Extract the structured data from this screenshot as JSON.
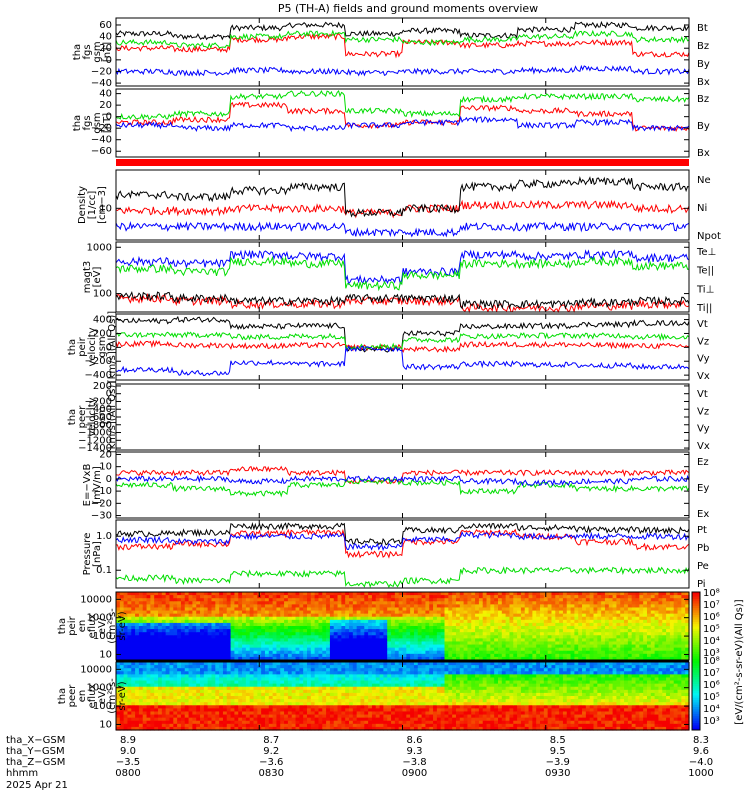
{
  "title": "P5 (TH-A) fields and ground moments overview",
  "colors": {
    "black": "#000000",
    "red": "#ff0000",
    "green": "#00dd00",
    "blue": "#0000ff"
  },
  "chart_data": [
    {
      "id": "fgs_total",
      "type": "line",
      "ylabel": [
        "tha",
        "fgs",
        "gsm",
        "[nT]"
      ],
      "ylim": [
        -45,
        72
      ],
      "ticks": [
        {
          "v": 60,
          "l": "60"
        },
        {
          "v": 40,
          "l": "40"
        },
        {
          "v": 20,
          "l": "20"
        },
        {
          "v": 0,
          "l": "0"
        },
        {
          "v": -20,
          "l": "−20"
        },
        {
          "v": -40,
          "l": "−40"
        }
      ],
      "series": [
        {
          "name": "Bt",
          "color": "black",
          "base": [
            45,
            40,
            55,
            60,
            45,
            50,
            42,
            52,
            60,
            55
          ]
        },
        {
          "name": "Bz",
          "color": "red",
          "base": [
            20,
            18,
            35,
            40,
            10,
            30,
            25,
            28,
            30,
            10
          ]
        },
        {
          "name": "By",
          "color": "green",
          "base": [
            30,
            25,
            40,
            45,
            35,
            30,
            35,
            40,
            45,
            35
          ]
        },
        {
          "name": "Bx",
          "color": "blue",
          "base": [
            -20,
            -22,
            -18,
            -20,
            -22,
            -20,
            -20,
            -18,
            -15,
            -20
          ]
        }
      ]
    },
    {
      "id": "fgs_gsm",
      "type": "line",
      "ylabel": [
        "tha",
        "fgs",
        "gsm",
        "[nT]"
      ],
      "ylim": [
        -70,
        48
      ],
      "ticks": [
        {
          "v": 40,
          "l": "40"
        },
        {
          "v": 20,
          "l": "20"
        },
        {
          "v": 0,
          "l": "0"
        },
        {
          "v": -20,
          "l": "−20"
        },
        {
          "v": -40,
          "l": "−40"
        },
        {
          "v": -60,
          "l": "−60"
        }
      ],
      "series": [
        {
          "name": "Bz",
          "color": "red",
          "base": [
            -10,
            -5,
            20,
            10,
            -15,
            -10,
            15,
            10,
            5,
            -20
          ]
        },
        {
          "name": "By",
          "color": "green",
          "base": [
            0,
            5,
            35,
            40,
            10,
            5,
            30,
            35,
            35,
            30
          ]
        },
        {
          "name": "Bx",
          "color": "blue",
          "base": [
            -15,
            -20,
            -15,
            -20,
            -15,
            -10,
            -5,
            -15,
            -10,
            -20
          ]
        }
      ]
    },
    {
      "id": "density",
      "type": "line",
      "ylabel": [
        "Density",
        "[1/cc]",
        "[cm−3]"
      ],
      "ylim": [
        2,
        70
      ],
      "log": true,
      "ticks": [
        {
          "v": 10,
          "l": "10"
        }
      ],
      "series": [
        {
          "name": "Ne",
          "color": "red",
          "base": [
            9,
            9,
            10,
            10,
            8,
            10,
            12,
            12,
            12,
            10
          ]
        },
        {
          "name": "Ni",
          "color": "black",
          "base": [
            20,
            18,
            25,
            30,
            8,
            10,
            30,
            35,
            40,
            30
          ]
        },
        {
          "name": "Npot",
          "color": "blue",
          "base": [
            4,
            4,
            4,
            4,
            3,
            3,
            4,
            4,
            4,
            4
          ]
        }
      ]
    },
    {
      "id": "temperature",
      "type": "line",
      "ylabel": [
        "magt3",
        "[eV]"
      ],
      "ylim": [
        40,
        1300
      ],
      "log": true,
      "ticks": [
        {
          "v": 1000,
          "l": "1000"
        },
        {
          "v": 100,
          "l": "100"
        }
      ],
      "series": [
        {
          "name": "Te⊥",
          "color": "red",
          "base": [
            80,
            70,
            60,
            60,
            70,
            70,
            50,
            50,
            55,
            60
          ]
        },
        {
          "name": "Te||",
          "color": "black",
          "base": [
            90,
            80,
            70,
            70,
            80,
            80,
            60,
            60,
            65,
            70
          ]
        },
        {
          "name": "Ti⊥",
          "color": "blue",
          "base": [
            500,
            450,
            700,
            650,
            200,
            300,
            700,
            650,
            700,
            600
          ]
        },
        {
          "name": "Ti||",
          "color": "green",
          "base": [
            350,
            300,
            500,
            450,
            150,
            250,
            450,
            450,
            500,
            400
          ]
        }
      ]
    },
    {
      "id": "peir_velocity",
      "type": "line",
      "ylabel": [
        "tha",
        "peir",
        "velocity",
        "gsm",
        "[km/s](All Qs)]"
      ],
      "ylim": [
        -470,
        480
      ],
      "ticks": [
        {
          "v": 400,
          "l": "400"
        },
        {
          "v": 200,
          "l": "200"
        },
        {
          "v": 0,
          "l": "0"
        },
        {
          "v": -200,
          "l": "−200"
        },
        {
          "v": -400,
          "l": "−400"
        }
      ],
      "series": [
        {
          "name": "Vt",
          "color": "black",
          "base": [
            380,
            400,
            300,
            310,
            -30,
            200,
            300,
            310,
            330,
            350
          ]
        },
        {
          "name": "Vz",
          "color": "red",
          "base": [
            50,
            30,
            20,
            30,
            0,
            -30,
            40,
            40,
            30,
            20
          ]
        },
        {
          "name": "Vy",
          "color": "green",
          "base": [
            180,
            180,
            150,
            160,
            10,
            110,
            160,
            170,
            170,
            150
          ]
        },
        {
          "name": "Vx",
          "color": "blue",
          "base": [
            -320,
            -370,
            -220,
            -240,
            -20,
            -280,
            -240,
            -250,
            -260,
            -280
          ]
        }
      ]
    },
    {
      "id": "peer_velocity",
      "type": "line",
      "ylabel": [
        "tha",
        "peer",
        "velocity",
        "gsm",
        "[km/s](All Qs)]"
      ],
      "ylim": [
        -1450,
        250
      ],
      "ticks": [
        {
          "v": 200,
          "l": "200"
        },
        {
          "v": 0,
          "l": "0"
        },
        {
          "v": -200,
          "l": "−200"
        },
        {
          "v": -400,
          "l": "−400"
        },
        {
          "v": -600,
          "l": "−600"
        },
        {
          "v": -800,
          "l": "−800"
        },
        {
          "v": -1000,
          "l": "−1000"
        },
        {
          "v": -1200,
          "l": "−1200"
        },
        {
          "v": -1400,
          "l": "−1400"
        }
      ],
      "series": [
        {
          "name": "Vt",
          "color": "black",
          "base": []
        },
        {
          "name": "Vz",
          "color": "red",
          "base": []
        },
        {
          "name": "Vy",
          "color": "green",
          "base": []
        },
        {
          "name": "Vx",
          "color": "blue",
          "base": []
        }
      ]
    },
    {
      "id": "efield",
      "type": "line",
      "ylabel": [
        "E=−VxB",
        "[mV/m]"
      ],
      "ylim": [
        -32,
        22
      ],
      "ticks": [
        {
          "v": 20,
          "l": "20"
        },
        {
          "v": 10,
          "l": "10"
        },
        {
          "v": 0,
          "l": "0"
        },
        {
          "v": -10,
          "l": "−10"
        },
        {
          "v": -20,
          "l": "−20"
        },
        {
          "v": -30,
          "l": "−30"
        }
      ],
      "series": [
        {
          "name": "Ez",
          "color": "red",
          "base": [
            5,
            5,
            8,
            5,
            -2,
            5,
            5,
            5,
            5,
            5
          ]
        },
        {
          "name": "Ey",
          "color": "green",
          "base": [
            -5,
            -8,
            -12,
            -5,
            -2,
            -3,
            -10,
            -5,
            -8,
            -8
          ]
        },
        {
          "name": "Ex",
          "color": "blue",
          "base": [
            0,
            0,
            -2,
            0,
            0,
            0,
            -2,
            -3,
            -2,
            0
          ]
        }
      ]
    },
    {
      "id": "pressure",
      "type": "line",
      "ylabel": [
        "Pressure",
        "[nPa]"
      ],
      "ylim": [
        0.03,
        3
      ],
      "log": true,
      "ticks": [
        {
          "v": 1.0,
          "l": "1.0"
        },
        {
          "v": 0.1,
          "l": "0.1"
        }
      ],
      "series": [
        {
          "name": "Pt",
          "color": "black",
          "base": [
            1.2,
            1.3,
            2.0,
            2.0,
            0.7,
            1.5,
            2.0,
            1.8,
            1.6,
            1.5
          ]
        },
        {
          "name": "Pb",
          "color": "red",
          "base": [
            0.5,
            0.6,
            1.2,
            1.3,
            0.3,
            0.7,
            1.3,
            1.0,
            0.7,
            0.5
          ]
        },
        {
          "name": "Pe",
          "color": "green",
          "base": [
            0.06,
            0.05,
            0.08,
            0.08,
            0.04,
            0.05,
            0.1,
            0.1,
            0.1,
            0.1
          ]
        },
        {
          "name": "Pi",
          "color": "blue",
          "base": [
            0.8,
            0.7,
            1.0,
            1.0,
            0.5,
            0.8,
            1.1,
            1.0,
            1.0,
            1.0
          ]
        }
      ]
    },
    {
      "id": "peir_eflux",
      "type": "heatmap",
      "ylabel": [
        "tha",
        "peir",
        "en",
        "eflux",
        "eV/",
        "(cm²-s-",
        "sr-eV)"
      ],
      "ylim": [
        5,
        25000
      ],
      "log": true,
      "ticks": [
        {
          "v": 10000,
          "l": "10000"
        },
        {
          "v": 1000,
          "l": "1000"
        },
        {
          "v": 100,
          "l": "100"
        },
        {
          "v": 10,
          "l": "10"
        }
      ]
    },
    {
      "id": "peer_eflux",
      "type": "heatmap",
      "ylabel": [
        "tha",
        "peer",
        "en",
        "eflux",
        "eV/",
        "(cm²-s-",
        "sr-eV)"
      ],
      "ylim": [
        5,
        25000
      ],
      "log": true,
      "ticks": [
        {
          "v": 10000,
          "l": "10000"
        },
        {
          "v": 1000,
          "l": "1000"
        },
        {
          "v": 100,
          "l": "100"
        },
        {
          "v": 10,
          "l": "10"
        }
      ]
    }
  ],
  "colorbar": {
    "label": "[eV/(cm²-s-sr-eV)(All Qs)]",
    "ticks_top": [
      "10⁸",
      "10⁷",
      "10⁶",
      "10⁵",
      "10⁴",
      "10³"
    ],
    "ticks_bottom": [
      "10⁸",
      "10⁷",
      "10⁶",
      "10⁵",
      "10⁴",
      "10³"
    ]
  },
  "xaxis": {
    "tick_labels": [
      "0800",
      "0830",
      "0900",
      "0930",
      "1000"
    ],
    "rows": [
      {
        "label": "tha_X−GSM",
        "values": [
          "8.9",
          "8.7",
          "8.6",
          "8.5",
          "8.3"
        ]
      },
      {
        "label": "tha_Y−GSM",
        "values": [
          "9.0",
          "9.2",
          "9.3",
          "9.5",
          "9.6"
        ]
      },
      {
        "label": "tha_Z−GSM",
        "values": [
          "−3.5",
          "−3.6",
          "−3.8",
          "−3.9",
          "−4.0"
        ]
      },
      {
        "label": "hhmm",
        "values": [
          "0800",
          "0830",
          "0900",
          "0930",
          "1000"
        ]
      }
    ],
    "date": "2025 Apr 21"
  }
}
